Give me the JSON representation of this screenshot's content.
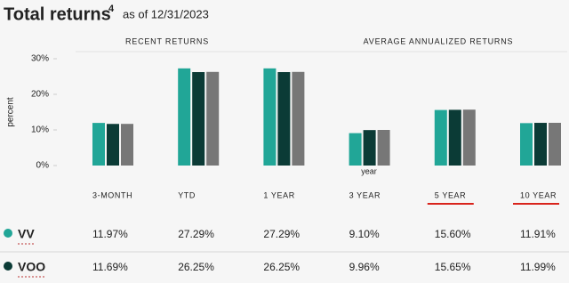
{
  "chart_data": {
    "type": "bar",
    "title": "Total returns",
    "title_footnote": "4",
    "subtitle": "as of 12/31/2023",
    "section_labels": [
      "RECENT RETURNS",
      "AVERAGE ANNUALIZED RETURNS"
    ],
    "y_label": "percent",
    "x_label": "year",
    "categories": [
      "3-MONTH",
      "YTD",
      "1 YEAR",
      "3 YEAR",
      "5 YEAR",
      "10 YEAR"
    ],
    "series": [
      {
        "name": "VV",
        "color": "#21a697",
        "values": [
          11.97,
          27.29,
          27.29,
          9.1,
          15.6,
          11.91
        ],
        "value_labels": [
          "11.97%",
          "27.29%",
          "27.29%",
          "9.10%",
          "15.60%",
          "11.91%"
        ]
      },
      {
        "name": "VOO",
        "color": "#0b3b36",
        "values": [
          11.69,
          26.25,
          26.25,
          9.96,
          15.65,
          11.99
        ],
        "value_labels": [
          "11.69%",
          "26.25%",
          "26.25%",
          "9.96%",
          "15.65%",
          "11.99%"
        ]
      },
      {
        "color": "#777777",
        "values": [
          11.7,
          26.3,
          26.3,
          10.0,
          15.7,
          12.0
        ]
      }
    ],
    "ylim": [
      0,
      30
    ],
    "yticks": [
      {
        "value": 0,
        "label": "0%"
      },
      {
        "value": 10,
        "label": "10%"
      },
      {
        "value": 20,
        "label": "20%"
      },
      {
        "value": 30,
        "label": "30%"
      }
    ]
  }
}
